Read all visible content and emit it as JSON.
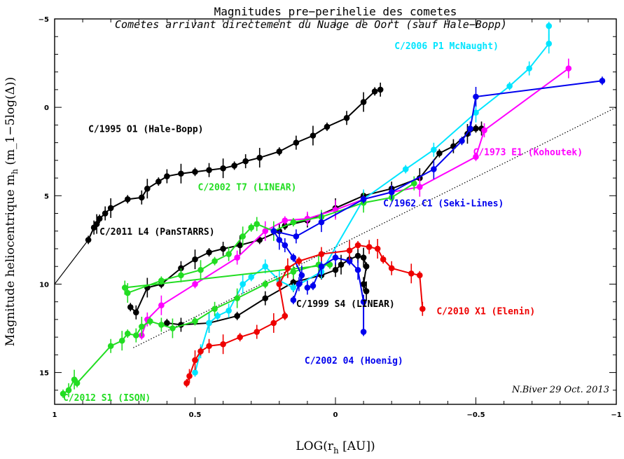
{
  "chart_data": {
    "type": "scatter",
    "title": "Magnitudes pre−perihelie des cometes",
    "subtitle": "Cometes arrivant directement du Nuage de Oort (sauf Hale−Bopp)",
    "xlabel": "LOG(r_h [AU])",
    "ylabel": "Magnitude heliocentrique m_h (m_1−5log(Δ))",
    "xlim": [
      1,
      -1
    ],
    "ylim": [
      16.8,
      -5
    ],
    "x_ticks": [
      "1",
      "0.5",
      "0",
      "−0.5",
      "−1"
    ],
    "x_tick_values": [
      1,
      0.5,
      0,
      -0.5,
      -1
    ],
    "y_ticks": [
      "−5",
      "0",
      "5",
      "10",
      "15"
    ],
    "y_tick_values": [
      -5,
      0,
      5,
      10,
      15
    ],
    "credit": "N.Biver 29 Oct. 2013",
    "reference_lines": [
      {
        "style": "solid",
        "color": "#000000",
        "points": [
          [
            1,
            10
          ],
          [
            0.88,
            7.5
          ]
        ]
      },
      {
        "style": "dotted",
        "color": "#000000",
        "points": [
          [
            0.72,
            13.6
          ],
          [
            -1,
            0
          ]
        ]
      }
    ],
    "series": [
      {
        "name": "C/1995 O1 (Hale-Bopp)",
        "color": "#000000",
        "points": [
          [
            0.88,
            7.5
          ],
          [
            0.86,
            6.8
          ],
          [
            0.85,
            6.6
          ],
          [
            0.84,
            6.3
          ],
          [
            0.82,
            6.0
          ],
          [
            0.8,
            5.7
          ],
          [
            0.74,
            5.2
          ],
          [
            0.69,
            5.1
          ],
          [
            0.67,
            4.6
          ],
          [
            0.63,
            4.2
          ],
          [
            0.6,
            3.9
          ],
          [
            0.55,
            3.75
          ],
          [
            0.5,
            3.65
          ],
          [
            0.45,
            3.55
          ],
          [
            0.4,
            3.45
          ],
          [
            0.36,
            3.3
          ],
          [
            0.32,
            3.05
          ],
          [
            0.27,
            2.85
          ],
          [
            0.2,
            2.5
          ],
          [
            0.14,
            2.0
          ],
          [
            0.08,
            1.6
          ],
          [
            0.03,
            1.1
          ],
          [
            -0.04,
            0.6
          ],
          [
            -0.1,
            -0.3
          ],
          [
            -0.14,
            -0.9
          ],
          [
            -0.16,
            -1.0
          ]
        ],
        "label": "C/1995 O1 (Hale-Bopp)"
      },
      {
        "name": "C/2011 L4 (PanSTARRS)",
        "color": "#000000",
        "points": [
          [
            0.73,
            11.3
          ],
          [
            0.71,
            11.6
          ],
          [
            0.67,
            10.2
          ],
          [
            0.62,
            10.0
          ],
          [
            0.55,
            9.1
          ],
          [
            0.5,
            8.6
          ],
          [
            0.45,
            8.2
          ],
          [
            0.4,
            8.0
          ],
          [
            0.34,
            7.8
          ],
          [
            0.27,
            7.5
          ],
          [
            0.2,
            7.0
          ]
        ],
        "label": "C/2011 L4 (PanSTARRS)"
      },
      {
        "name": "C/1999 S4 (LINEAR)",
        "color": "#000000",
        "points": [
          [
            0.6,
            12.2
          ],
          [
            0.55,
            12.3
          ],
          [
            0.45,
            12.2
          ],
          [
            0.35,
            11.8
          ],
          [
            0.25,
            10.8
          ],
          [
            0.15,
            9.9
          ],
          [
            0.05,
            9.5
          ],
          [
            0.0,
            9.2
          ],
          [
            -0.02,
            8.9
          ],
          [
            -0.05,
            8.6
          ],
          [
            -0.08,
            8.4
          ],
          [
            -0.1,
            8.5
          ],
          [
            -0.11,
            9.0
          ],
          [
            -0.1,
            10.0
          ],
          [
            -0.11,
            10.4
          ]
        ],
        "label": "C/1999 S4 (LINEAR)"
      },
      {
        "name": "C/1962 C1 (Seki-Lines)",
        "color": "#000000",
        "points": [
          [
            0.18,
            6.7
          ],
          [
            0.1,
            6.4
          ],
          [
            0.0,
            5.7
          ],
          [
            -0.1,
            5.0
          ],
          [
            -0.2,
            4.6
          ],
          [
            -0.3,
            4.0
          ],
          [
            -0.37,
            2.6
          ],
          [
            -0.42,
            2.2
          ],
          [
            -0.47,
            1.5
          ],
          [
            -0.5,
            1.2
          ],
          [
            -0.52,
            1.2
          ]
        ],
        "label": ""
      },
      {
        "name": "C/2006 P1 McNaught",
        "color": "#00e5ff",
        "points": [
          [
            0.5,
            15.0
          ],
          [
            0.48,
            13.8
          ],
          [
            0.45,
            12.2
          ],
          [
            0.42,
            11.8
          ],
          [
            0.38,
            11.5
          ],
          [
            0.33,
            10.0
          ],
          [
            0.3,
            9.6
          ],
          [
            0.25,
            9.0
          ],
          [
            0.2,
            9.8
          ],
          [
            0.15,
            10.2
          ],
          [
            0.05,
            9.3
          ],
          [
            -0.1,
            5.2
          ],
          [
            -0.25,
            3.5
          ],
          [
            -0.35,
            2.4
          ],
          [
            -0.5,
            0.3
          ],
          [
            -0.62,
            -1.2
          ],
          [
            -0.69,
            -2.2
          ],
          [
            -0.76,
            -3.6
          ],
          [
            -0.76,
            -4.6
          ]
        ],
        "label": "C/2006 P1 McNaught)"
      },
      {
        "name": "C/1973 E1 (Kohoutek)",
        "color": "#ff00ff",
        "points": [
          [
            0.69,
            12.9
          ],
          [
            0.67,
            12.0
          ],
          [
            0.62,
            11.2
          ],
          [
            0.5,
            10.0
          ],
          [
            0.35,
            8.5
          ],
          [
            0.25,
            7.0
          ],
          [
            0.18,
            6.4
          ],
          [
            0.1,
            6.3
          ],
          [
            0.0,
            5.8
          ],
          [
            -0.1,
            5.2
          ],
          [
            -0.2,
            4.8
          ],
          [
            -0.3,
            4.5
          ],
          [
            -0.5,
            2.8
          ],
          [
            -0.53,
            1.3
          ],
          [
            -0.83,
            -2.2
          ]
        ],
        "label": "C/1973 E1 (Kohoutek)"
      },
      {
        "name": "C/2002 T7 (LINEAR)",
        "color": "#22dd22",
        "points": [
          [
            0.97,
            16.2
          ],
          [
            0.95,
            16.0
          ],
          [
            0.93,
            15.4
          ],
          [
            0.92,
            15.6
          ],
          [
            0.8,
            13.5
          ],
          [
            0.76,
            13.2
          ],
          [
            0.74,
            12.8
          ],
          [
            0.71,
            12.9
          ],
          [
            0.69,
            12.4
          ],
          [
            0.66,
            12.1
          ],
          [
            0.62,
            12.3
          ],
          [
            0.58,
            12.5
          ],
          [
            0.5,
            12.1
          ],
          [
            0.43,
            11.4
          ],
          [
            0.35,
            10.8
          ],
          [
            0.25,
            10.0
          ],
          [
            0.15,
            9.3
          ],
          [
            0.06,
            8.9
          ],
          [
            0.02,
            8.9
          ],
          [
            0.75,
            10.2
          ],
          [
            0.74,
            10.5
          ],
          [
            0.62,
            9.8
          ],
          [
            0.55,
            9.5
          ],
          [
            0.48,
            9.2
          ],
          [
            0.43,
            8.7
          ],
          [
            0.38,
            8.3
          ],
          [
            0.33,
            7.3
          ],
          [
            0.3,
            6.8
          ],
          [
            0.28,
            6.6
          ],
          [
            0.22,
            7.0
          ],
          [
            0.15,
            6.5
          ],
          [
            0.05,
            6.2
          ],
          [
            -0.1,
            5.4
          ],
          [
            -0.2,
            5.1
          ],
          [
            -0.28,
            4.3
          ]
        ],
        "label": "C/2002 T7 (LINEAR)"
      },
      {
        "name": "C/2012 S1 (ISON)",
        "color": "#22dd22",
        "points": [],
        "label": "C/2012 S1 (ISON)"
      },
      {
        "name": "C/1962 C1 (Seki-Lines)",
        "color": "#0000ee",
        "points": [
          [
            0.15,
            10.9
          ],
          [
            0.13,
            10.0
          ],
          [
            0.12,
            9.5
          ],
          [
            0.15,
            8.5
          ],
          [
            0.18,
            7.8
          ],
          [
            0.2,
            7.5
          ],
          [
            0.22,
            7.0
          ],
          [
            0.14,
            7.3
          ],
          [
            0.05,
            6.5
          ],
          [
            -0.1,
            5.2
          ],
          [
            -0.2,
            4.8
          ],
          [
            -0.35,
            3.5
          ],
          [
            -0.45,
            1.9
          ],
          [
            -0.48,
            1.2
          ],
          [
            -0.5,
            -0.6
          ],
          [
            -0.95,
            -1.5
          ]
        ],
        "label": "C/1962 C1 (Seki-Lines)"
      },
      {
        "name": "C/2002 04 (Hoenig)",
        "color": "#0000ee",
        "points": [
          [
            -0.1,
            12.7
          ],
          [
            -0.1,
            11.0
          ],
          [
            -0.08,
            9.2
          ],
          [
            -0.05,
            8.7
          ],
          [
            0.0,
            8.5
          ],
          [
            0.05,
            9.0
          ],
          [
            0.08,
            10.1
          ],
          [
            0.1,
            10.2
          ]
        ],
        "label": "C/2002 04 (Hoenig)"
      },
      {
        "name": "C/2010 X1 (Elenin)",
        "color": "#ee0000",
        "points": [
          [
            0.53,
            15.6
          ],
          [
            0.52,
            15.2
          ],
          [
            0.5,
            14.3
          ],
          [
            0.48,
            13.8
          ],
          [
            0.45,
            13.5
          ],
          [
            0.4,
            13.4
          ],
          [
            0.34,
            13.0
          ],
          [
            0.28,
            12.7
          ],
          [
            0.22,
            12.2
          ],
          [
            0.18,
            11.8
          ],
          [
            0.2,
            10.0
          ],
          [
            0.17,
            9.1
          ],
          [
            0.13,
            8.7
          ],
          [
            0.05,
            8.3
          ],
          [
            -0.05,
            8.1
          ],
          [
            -0.08,
            7.8
          ],
          [
            -0.12,
            7.9
          ],
          [
            -0.15,
            8.0
          ],
          [
            -0.17,
            8.6
          ],
          [
            -0.2,
            9.1
          ],
          [
            -0.27,
            9.4
          ],
          [
            -0.3,
            9.5
          ],
          [
            -0.31,
            11.4
          ]
        ],
        "label": "C/2010 X1 (Elenin)"
      }
    ],
    "labels": [
      {
        "text": "C/1995 O1 (Hale-Bopp)",
        "color": "#000000",
        "x": 0.88,
        "y": 1.4
      },
      {
        "text": "C/2011 L4 (PanSTARRS)",
        "color": "#000000",
        "x": 0.84,
        "y": 7.2
      },
      {
        "text": "C/2002 T7 (LINEAR)",
        "color": "#22dd22",
        "x": 0.49,
        "y": 4.7
      },
      {
        "text": "C/2006 P1 McNaught)",
        "color": "#00e5ff",
        "x": -0.21,
        "y": -3.3
      },
      {
        "text": "C/1973 E1 (Kohoutek)",
        "color": "#ff00ff",
        "x": -0.49,
        "y": 2.7
      },
      {
        "text": "C/1962 C1 (Seki-Lines)",
        "color": "#0000ee",
        "x": -0.17,
        "y": 5.6
      },
      {
        "text": "C/1999 S4 (LINEAR)",
        "color": "#000000",
        "x": 0.14,
        "y": 11.3
      },
      {
        "text": "C/2010 X1 (Elenin)",
        "color": "#ee0000",
        "x": -0.36,
        "y": 11.7
      },
      {
        "text": "C/2002 04 (Hoenig)",
        "color": "#0000ee",
        "x": 0.11,
        "y": 14.5
      },
      {
        "text": "C/2012 S1 (ISON)",
        "color": "#22dd22",
        "x": 0.97,
        "y": 16.6
      }
    ]
  }
}
